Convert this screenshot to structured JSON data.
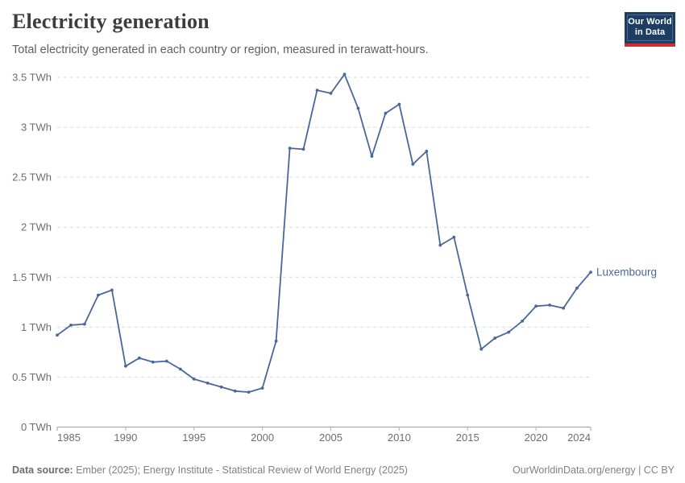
{
  "header": {
    "title": "Electricity generation",
    "subtitle": "Total electricity generated in each country or region, measured in terawatt-hours.",
    "logo": {
      "line1": "Our World",
      "line2": "in Data"
    }
  },
  "footer": {
    "source_label": "Data source:",
    "source_text": " Ember (2025); Energy Institute - Statistical Review of World Energy (2025)",
    "rights": "OurWorldinData.org/energy | CC BY"
  },
  "colors": {
    "series_blue": "#4a679b",
    "logo_navy": "#1d3d63",
    "logo_red": "#cf2e2e"
  },
  "chart_data": {
    "type": "line",
    "title": "Electricity generation",
    "unit": "TWh",
    "xlabel": "",
    "ylabel": "",
    "xlim": [
      1985,
      2024
    ],
    "ylim": [
      0,
      3.5
    ],
    "grid": "horizontal dashed",
    "legend_position": "end-of-line label",
    "x_ticks": [
      {
        "value": 1985,
        "label": "1985"
      },
      {
        "value": 1990,
        "label": "1990"
      },
      {
        "value": 1995,
        "label": "1995"
      },
      {
        "value": 2000,
        "label": "2000"
      },
      {
        "value": 2005,
        "label": "2005"
      },
      {
        "value": 2010,
        "label": "2010"
      },
      {
        "value": 2015,
        "label": "2015"
      },
      {
        "value": 2020,
        "label": "2020"
      },
      {
        "value": 2024,
        "label": "2024"
      }
    ],
    "y_ticks": [
      {
        "value": 0,
        "label": "0 TWh"
      },
      {
        "value": 0.5,
        "label": "0.5 TWh"
      },
      {
        "value": 1,
        "label": "1 TWh"
      },
      {
        "value": 1.5,
        "label": "1.5 TWh"
      },
      {
        "value": 2,
        "label": "2 TWh"
      },
      {
        "value": 2.5,
        "label": "2.5 TWh"
      },
      {
        "value": 3,
        "label": "3 TWh"
      },
      {
        "value": 3.5,
        "label": "3.5 TWh"
      }
    ],
    "series": [
      {
        "name": "Luxembourg",
        "color": "#4a679b",
        "x": [
          1985,
          1986,
          1987,
          1988,
          1989,
          1990,
          1991,
          1992,
          1993,
          1994,
          1995,
          1996,
          1997,
          1998,
          1999,
          2000,
          2001,
          2002,
          2003,
          2004,
          2005,
          2006,
          2007,
          2008,
          2009,
          2010,
          2011,
          2012,
          2013,
          2014,
          2015,
          2016,
          2017,
          2018,
          2019,
          2020,
          2021,
          2022,
          2023,
          2024
        ],
        "values": [
          0.92,
          1.02,
          1.03,
          1.32,
          1.37,
          0.61,
          0.69,
          0.65,
          0.66,
          0.58,
          0.48,
          0.44,
          0.4,
          0.36,
          0.35,
          0.39,
          0.86,
          2.79,
          2.78,
          3.37,
          3.34,
          3.53,
          3.19,
          2.71,
          3.14,
          3.23,
          2.63,
          2.76,
          1.82,
          1.9,
          1.32,
          0.78,
          0.89,
          0.95,
          1.06,
          1.21,
          1.22,
          1.19,
          1.39,
          1.55
        ]
      }
    ]
  }
}
